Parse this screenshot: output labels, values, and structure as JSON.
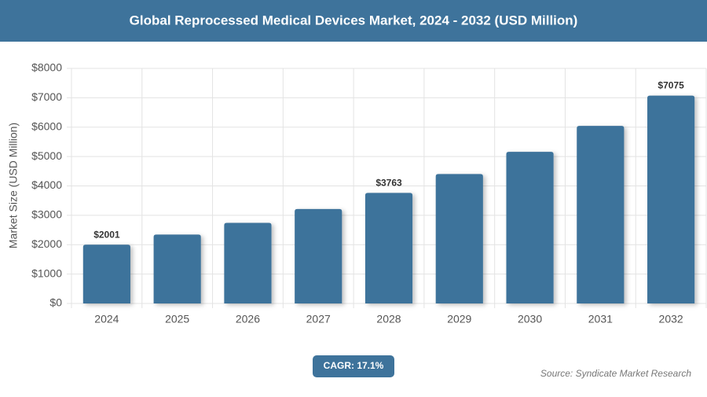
{
  "chart_data": {
    "type": "bar",
    "title": "Global Reprocessed Medical Devices Market, 2024 - 2032 (USD Million)",
    "y_label": "Market Size (USD Million)",
    "categories": [
      "2024",
      "2025",
      "2026",
      "2027",
      "2028",
      "2029",
      "2030",
      "2031",
      "2032"
    ],
    "values": [
      2001,
      2343,
      2744,
      3213,
      3763,
      4406,
      5160,
      6042,
      7075
    ],
    "value_labels": [
      "$2001",
      null,
      null,
      null,
      "$3763",
      null,
      null,
      null,
      "$7075"
    ],
    "color": "#3e739b",
    "ylim": [
      0,
      8000
    ],
    "yticks": [
      {
        "value": 0,
        "label": "$0"
      },
      {
        "value": 1000,
        "label": "$1000"
      },
      {
        "value": 2000,
        "label": "$2000"
      },
      {
        "value": 3000,
        "label": "$3000"
      },
      {
        "value": 4000,
        "label": "$4000"
      },
      {
        "value": 5000,
        "label": "$5000"
      },
      {
        "value": 6000,
        "label": "$6000"
      },
      {
        "value": 7000,
        "label": "$7000"
      },
      {
        "value": 8000,
        "label": "$8000"
      }
    ],
    "grid": true,
    "cagr": "CAGR: 17.1%",
    "source": "Source: Syndicate Market Research"
  }
}
